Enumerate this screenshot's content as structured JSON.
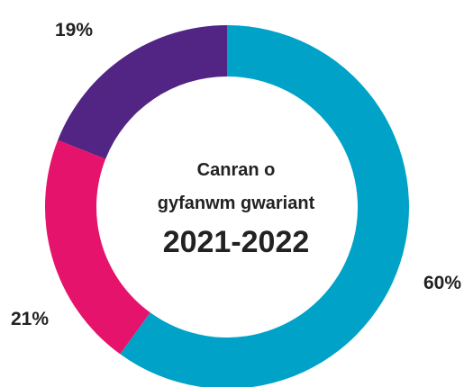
{
  "chart_data": {
    "type": "pie",
    "donut": true,
    "title_lines": [
      "Canran o",
      "gyfanwm gwariant"
    ],
    "subtitle": "2021-2022",
    "unit": "%",
    "slices": [
      {
        "label": "60%",
        "value": 60,
        "color": "#00A3C7"
      },
      {
        "label": "21%",
        "value": 21,
        "color": "#E5136B"
      },
      {
        "label": "19%",
        "value": 19,
        "color": "#522483"
      }
    ]
  }
}
